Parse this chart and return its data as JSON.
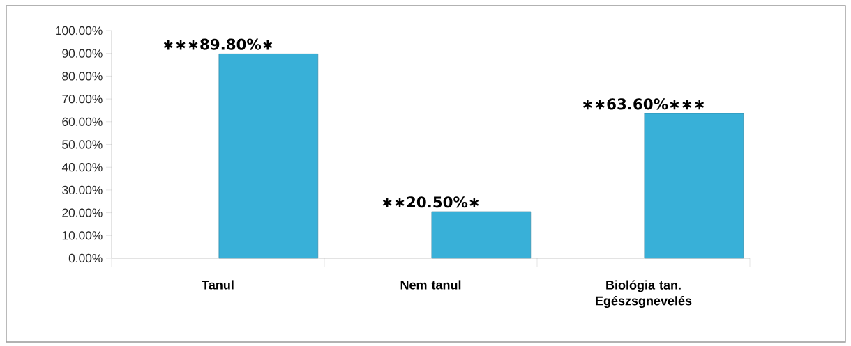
{
  "chart_data": {
    "type": "bar",
    "categories": [
      "Tanul",
      "Nem tanul",
      "Biológia tan. Egészsgnevelés"
    ],
    "values": [
      89.8,
      20.5,
      63.6
    ],
    "color": "#38b0d8",
    "value_labels": [
      "∗∗∗89.80%∗",
      "∗∗20.50%∗",
      "∗∗63.60%∗∗∗"
    ],
    "ylim": [
      0,
      100
    ],
    "yticks": [
      {
        "value": 0,
        "label": "0.00%"
      },
      {
        "value": 10,
        "label": "10.00%"
      },
      {
        "value": 20,
        "label": "20.00%"
      },
      {
        "value": 30,
        "label": "30.00%"
      },
      {
        "value": 40,
        "label": "40.00%"
      },
      {
        "value": 50,
        "label": "50.00%"
      },
      {
        "value": 60,
        "label": "60.00%"
      },
      {
        "value": 70,
        "label": "70.00%"
      },
      {
        "value": 80,
        "label": "80.00%"
      },
      {
        "value": 90,
        "label": "90.00%"
      },
      {
        "value": 100,
        "label": "100.00%"
      }
    ],
    "grid": false
  }
}
